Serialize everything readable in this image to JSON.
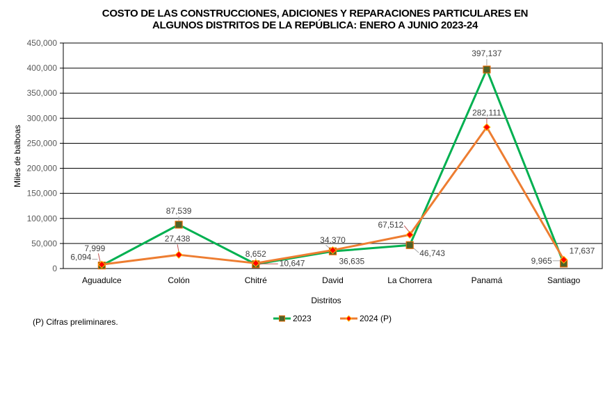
{
  "chart_data": {
    "type": "line",
    "title_lines": [
      "COSTO DE LAS CONSTRUCCIONES, ADICIONES Y REPARACIONES PARTICULARES EN",
      "ALGUNOS DISTRITOS DE LA REPÚBLICA: ENERO A JUNIO 2023-24"
    ],
    "xlabel": "Distritos",
    "ylabel": "Miles de balboas",
    "ylim": [
      0,
      450000
    ],
    "yticks": [
      0,
      50000,
      100000,
      150000,
      200000,
      250000,
      300000,
      350000,
      400000,
      450000
    ],
    "ytick_labels": [
      "0",
      "50,000",
      "100,000",
      "150,000",
      "200,000",
      "250,000",
      "300,000",
      "350,000",
      "400,000",
      "450,000"
    ],
    "grid": "horizontal",
    "legend_position": "bottom",
    "categories": [
      "Aguadulce",
      "Colón",
      "Chitré",
      "David",
      "La Chorrera",
      "Panamá",
      "Santiago"
    ],
    "series": [
      {
        "name": "2023",
        "color": "#00B050",
        "marker": "square",
        "marker_fill": "#4F6228",
        "marker_edge": "#E46C0A",
        "values": [
          6094,
          87539,
          8652,
          34370,
          46743,
          397137,
          9965
        ],
        "labels": [
          "6,094",
          "87,539",
          "8,652",
          "34,370",
          "46,743",
          "397,137",
          "9,965"
        ]
      },
      {
        "name": "2024 (P)",
        "color": "#ED7D31",
        "marker": "diamond",
        "marker_fill": "#FF0000",
        "marker_edge": "#FFC000",
        "values": [
          7999,
          27438,
          10647,
          36635,
          67512,
          282111,
          17637
        ],
        "labels": [
          "7,999",
          "27,438",
          "10,647",
          "36,635",
          "67,512",
          "282,111",
          "17,637"
        ]
      }
    ]
  },
  "footnote": "(P) Cifras  preliminares."
}
